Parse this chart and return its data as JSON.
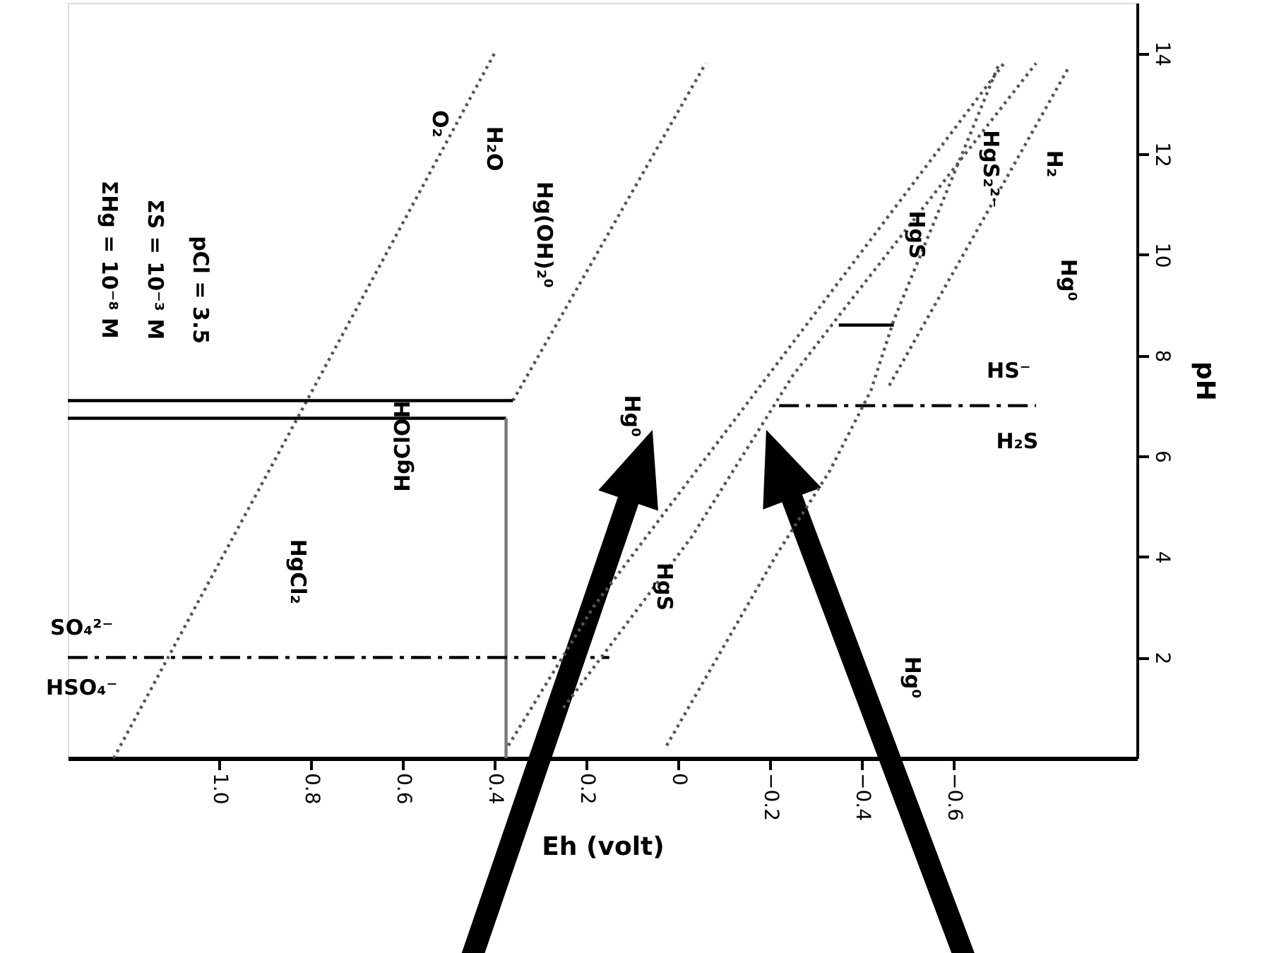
{
  "chart_data": {
    "type": "line",
    "xlabel": "Eh (volt)",
    "ylabel": "pH",
    "xlim": [
      1.33,
      -1.0
    ],
    "ylim": [
      0,
      15
    ],
    "xticks": [
      {
        "value": 1.0,
        "label": "1.0"
      },
      0.8,
      0.6,
      0.4,
      0.2,
      {
        "value": 0,
        "label": "0"
      },
      -0.2,
      -0.4,
      -0.6
    ],
    "yticks": [
      2,
      4,
      6,
      8,
      10,
      12,
      14
    ],
    "grid": false,
    "marker": "none",
    "series": [
      {
        "color": "#555555",
        "line_style": "dotted",
        "x": [
          1.23,
          0.4
        ],
        "values": [
          0,
          14
        ]
      },
      {
        "color": "#555555",
        "line_style": "dotted",
        "x": [
          0.36,
          -0.06
        ],
        "values": [
          7.1,
          13.8
        ]
      },
      {
        "color": "#000000",
        "line_style": "solid",
        "x": [
          1.33,
          0.36
        ],
        "values": [
          7.1,
          7.1
        ]
      },
      {
        "color": "#000000",
        "line_style": "solid",
        "x": [
          1.33,
          0.375
        ],
        "values": [
          6.75,
          6.75
        ]
      },
      {
        "color": "#777777",
        "line_style": "solid",
        "x": [
          0.375,
          0.375
        ],
        "values": [
          0,
          6.75
        ]
      },
      {
        "color": "#000000",
        "line_style": "dashed",
        "x": [
          1.33,
          0.15
        ],
        "values": [
          2,
          2
        ]
      },
      {
        "color": "#000000",
        "line_style": "dashed",
        "x": [
          -0.22,
          -0.78
        ],
        "values": [
          7,
          7
        ]
      },
      {
        "color": "#555555",
        "line_style": "dotted",
        "x": [
          0.37,
          0.185,
          -0.71
        ],
        "values": [
          0.25,
          3.0,
          13.8
        ]
      },
      {
        "color": "#555555",
        "line_style": "dotted",
        "x": [
          0.25,
          0.11,
          -0.03,
          -0.25,
          -0.36,
          -0.78
        ],
        "values": [
          1.0,
          2.7,
          4.4,
          7.6,
          8.9,
          13.8
        ]
      },
      {
        "color": "#000000",
        "line_style": "solid",
        "x": [
          -0.35,
          -0.47
        ],
        "values": [
          8.6,
          8.6
        ]
      },
      {
        "color": "#555555",
        "line_style": "dotted",
        "x": [
          0.025,
          -0.215,
          -0.33,
          -0.42,
          -0.47,
          -0.7
        ],
        "values": [
          0.25,
          4.05,
          5.7,
          7.3,
          8.7,
          13.8
        ]
      },
      {
        "color": "#555555",
        "line_style": "dotted",
        "x": [
          -0.46,
          -0.64,
          -0.85
        ],
        "values": [
          7.4,
          10.3,
          13.7
        ]
      }
    ],
    "annotations": [
      "ΣHg = 10⁻⁸ M",
      "ΣS = 10⁻³ M",
      "pCl = 3.5",
      "O₂",
      "H₂O",
      "Hg(OH)₂⁰",
      "HgClOH",
      "HgCl₂",
      "SO₄²⁻",
      "HSO₄⁻",
      "HS⁻",
      "H₂S",
      "Hg⁰",
      "HgS",
      "Hg⁰",
      "HgS",
      "HgS₂²⁻",
      "H₂",
      "Hg⁰"
    ]
  }
}
